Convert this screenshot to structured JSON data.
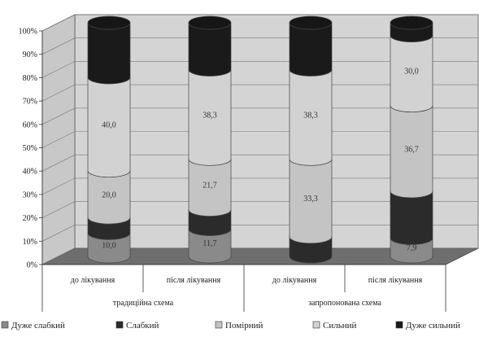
{
  "chart_data": {
    "type": "bar",
    "stacked": true,
    "percent": true,
    "three_d": true,
    "grid": true,
    "legend_position": "bottom",
    "ylim": [
      0,
      100
    ],
    "y_ticks": [
      "0%",
      "10%",
      "20%",
      "30%",
      "40%",
      "50%",
      "60%",
      "70%",
      "80%",
      "90%",
      "100%"
    ],
    "categories": [
      "до лікування",
      "після лікування",
      "до лікування",
      "після лікування"
    ],
    "groups": [
      {
        "label": "традиційна схема",
        "span": [
          0,
          1
        ]
      },
      {
        "label": "запропонована схема",
        "span": [
          2,
          3
        ]
      }
    ],
    "series": [
      {
        "name": "Дуже слабкий",
        "color": "#8a8a8a",
        "values": [
          10.0,
          11.7,
          0,
          7.9
        ],
        "labels": [
          "10,0",
          "11,7",
          "",
          "7,9"
        ]
      },
      {
        "name": "Слабкий",
        "color": "#2b2b2b",
        "values": [
          6.7,
          8.3,
          8.4,
          20.0
        ],
        "labels": [
          "",
          "",
          "",
          ""
        ]
      },
      {
        "name": "Помірний",
        "color": "#c4c4c4",
        "values": [
          20.0,
          21.7,
          33.3,
          36.7
        ],
        "labels": [
          "20,0",
          "21,7",
          "33,3",
          "36,7"
        ]
      },
      {
        "name": "Сильний",
        "color": "#d2d2d2",
        "values": [
          40.0,
          38.3,
          38.3,
          30.0
        ],
        "labels": [
          "40,0",
          "38,3",
          "38,3",
          "30,0"
        ]
      },
      {
        "name": "Дуже сильний",
        "color": "#1a1a1a",
        "values": [
          23.3,
          20.0,
          20.0,
          5.4
        ],
        "labels": [
          "",
          "",
          "",
          ""
        ]
      }
    ]
  }
}
